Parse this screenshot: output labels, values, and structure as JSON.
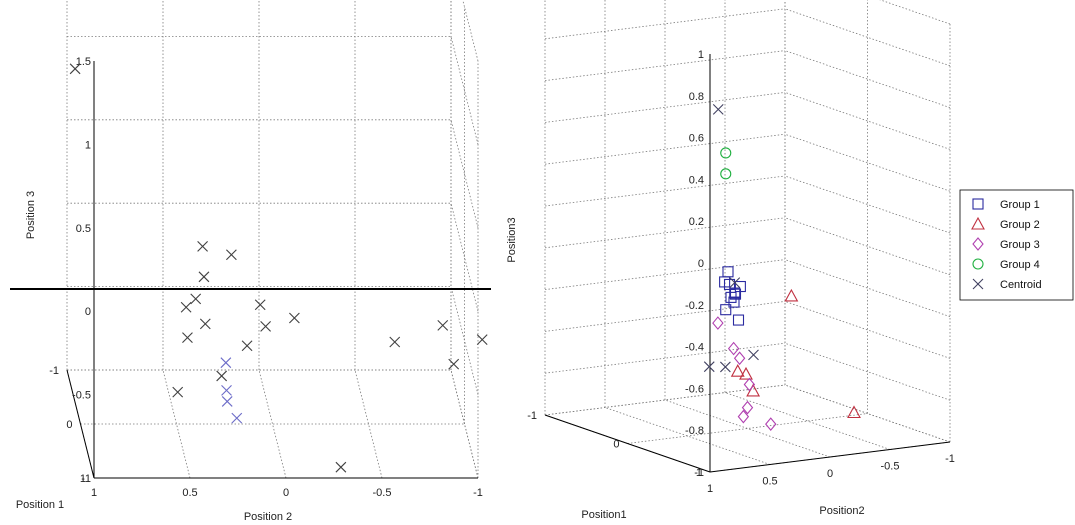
{
  "chart_data": [
    {
      "type": "scatter",
      "projection": "3d",
      "title": "",
      "xlabel": "Position 1",
      "ylabel": "Position 2",
      "zlabel": "Position 3",
      "x_ticks": [
        "1",
        "0",
        "-1"
      ],
      "y_ticks": [
        "1",
        "0.5",
        "0",
        "-0.5",
        "-1"
      ],
      "z_ticks": [
        "1.5",
        "1",
        "0.5",
        "0",
        "-0.5",
        "-1"
      ],
      "xlim": [
        -1,
        1
      ],
      "ylim": [
        -1,
        1
      ],
      "zlim": [
        -1,
        1.5
      ],
      "grid": true,
      "marker": "x",
      "marker_color": "#404040",
      "highlight_color": "#6c6cc8",
      "reference_line_color": "#000000",
      "series": [
        {
          "points": [
            {
              "x": -0.6,
              "y": 1.05,
              "z": -0.3
            },
            {
              "x": 0.9,
              "y": 0.95,
              "z": -0.7
            },
            {
              "x": 0.9,
              "y": 0.7,
              "z": -0.8
            },
            {
              "x": 0.8,
              "y": 1.0,
              "z": -0.9
            },
            {
              "x": -0.8,
              "y": 0.3,
              "z": -1.0
            },
            {
              "x": 0.2,
              "y": -0.05,
              "z": -0.35
            },
            {
              "x": -0.2,
              "y": 0.1,
              "z": -0.3
            },
            {
              "x": -0.2,
              "y": -0.05,
              "z": -0.35
            },
            {
              "x": -0.25,
              "y": -0.15,
              "z": -0.45
            },
            {
              "x": 0.2,
              "y": -0.2,
              "z": -0.05
            },
            {
              "x": 0.1,
              "y": -0.35,
              "z": -0.15
            },
            {
              "x": 0.0,
              "y": -0.35,
              "z": -0.4
            },
            {
              "x": 0.2,
              "y": -0.35,
              "z": 0.0
            },
            {
              "x": 0.0,
              "y": -0.4,
              "z": -0.25
            },
            {
              "x": 0.0,
              "y": -0.45,
              "z": -0.3
            },
            {
              "x": -0.1,
              "y": -0.45,
              "z": -0.45
            },
            {
              "x": -0.5,
              "y": -0.3,
              "z": -0.55
            },
            {
              "x": -0.8,
              "y": -0.55,
              "z": -0.55
            },
            {
              "x": 0.4,
              "y": -1.0,
              "z": 1.0
            },
            {
              "x": -0.1,
              "y": -0.25,
              "z": -0.6
            },
            {
              "x": -0.15,
              "y": -0.25,
              "z": -0.75
            },
            {
              "x": -0.2,
              "y": -0.25,
              "z": -0.8
            },
            {
              "x": -0.2,
              "y": -0.2,
              "z": -0.9
            }
          ],
          "highlight_indices": [
            19,
            20,
            21,
            22
          ]
        }
      ]
    },
    {
      "type": "scatter",
      "projection": "3d",
      "title": "",
      "xlabel": "Position1",
      "ylabel": "Position2",
      "zlabel": "Position3",
      "x_ticks": [
        "1",
        "0",
        "-1"
      ],
      "y_ticks": [
        "1",
        "0.5",
        "0",
        "-0.5",
        "-1"
      ],
      "z_ticks": [
        "1",
        "0.8",
        "0.6",
        "0.4",
        "0.2",
        "0",
        "-0.2",
        "-0.4",
        "-0.6",
        "-0.8",
        "-1"
      ],
      "xlim": [
        -1,
        1
      ],
      "ylim": [
        -1,
        1
      ],
      "zlim": [
        -1,
        1
      ],
      "grid": true,
      "legend": "right",
      "legend_entries": [
        {
          "label": "Group 1",
          "marker": "square",
          "color": "#2a2aa0"
        },
        {
          "label": "Group 2",
          "marker": "triangle",
          "color": "#c03040"
        },
        {
          "label": "Group 3",
          "marker": "diamond",
          "color": "#b040b0"
        },
        {
          "label": "Group 4",
          "marker": "circle",
          "color": "#20b040"
        },
        {
          "label": "Centroid",
          "marker": "x",
          "color": "#404060"
        }
      ],
      "groups": [
        {
          "marker": "square",
          "color": "#2a2aa0",
          "points": [
            {
              "x": 0.6,
              "y": 0.25,
              "z": -0.35
            },
            {
              "x": 0.45,
              "y": 0.25,
              "z": -0.4
            },
            {
              "x": 0.35,
              "y": 0.05,
              "z": -0.35
            },
            {
              "x": 0.3,
              "y": 0.1,
              "z": -0.4
            },
            {
              "x": 0.4,
              "y": 0.2,
              "z": -0.55
            },
            {
              "x": 0.2,
              "y": 0.0,
              "z": -0.4
            },
            {
              "x": 0.0,
              "y": -0.15,
              "z": -0.3
            },
            {
              "x": -0.1,
              "y": -0.25,
              "z": -0.4
            },
            {
              "x": 0.0,
              "y": -0.1,
              "z": -0.35
            },
            {
              "x": -0.2,
              "y": -0.25,
              "z": -0.35
            }
          ]
        },
        {
          "marker": "triangle",
          "color": "#c03040",
          "points": [
            {
              "x": 0.85,
              "y": 0.95,
              "z": -0.55
            },
            {
              "x": 0.95,
              "y": 0.7,
              "z": -1.0
            },
            {
              "x": 0.7,
              "y": 0.4,
              "z": -0.85
            },
            {
              "x": 0.6,
              "y": 0.4,
              "z": -0.85
            },
            {
              "x": -0.2,
              "y": 0.75,
              "z": -0.95
            }
          ]
        },
        {
          "marker": "diamond",
          "color": "#b040b0",
          "points": [
            {
              "x": -0.15,
              "y": -0.35,
              "z": -0.45
            },
            {
              "x": -0.05,
              "y": -0.15,
              "z": -0.6
            },
            {
              "x": -0.05,
              "y": -0.1,
              "z": -0.65
            },
            {
              "x": 0.05,
              "y": 0.05,
              "z": -0.8
            },
            {
              "x": 0.0,
              "y": 0.0,
              "z": -0.9
            },
            {
              "x": 0.05,
              "y": 0.0,
              "z": -0.95
            },
            {
              "x": -0.5,
              "y": -0.15,
              "z": -0.9
            }
          ]
        },
        {
          "marker": "circle",
          "color": "#20b040",
          "points": [
            {
              "x": -0.45,
              "y": -0.6,
              "z": 1.2
            },
            {
              "x": -0.1,
              "y": -0.25,
              "z": 0.35
            },
            {
              "x": -0.1,
              "y": -0.25,
              "z": 0.25
            }
          ]
        },
        {
          "marker": "x",
          "color": "#404060",
          "points": [
            {
              "x": -0.3,
              "y": -0.45,
              "z": 0.6
            },
            {
              "x": 0.3,
              "y": 0.1,
              "z": -0.35
            },
            {
              "x": 0.1,
              "y": -0.25,
              "z": -0.7
            },
            {
              "x": 0.8,
              "y": 0.6,
              "z": -0.8
            },
            {
              "x": 0.85,
              "y": 0.4,
              "z": -0.85
            }
          ]
        }
      ]
    }
  ]
}
